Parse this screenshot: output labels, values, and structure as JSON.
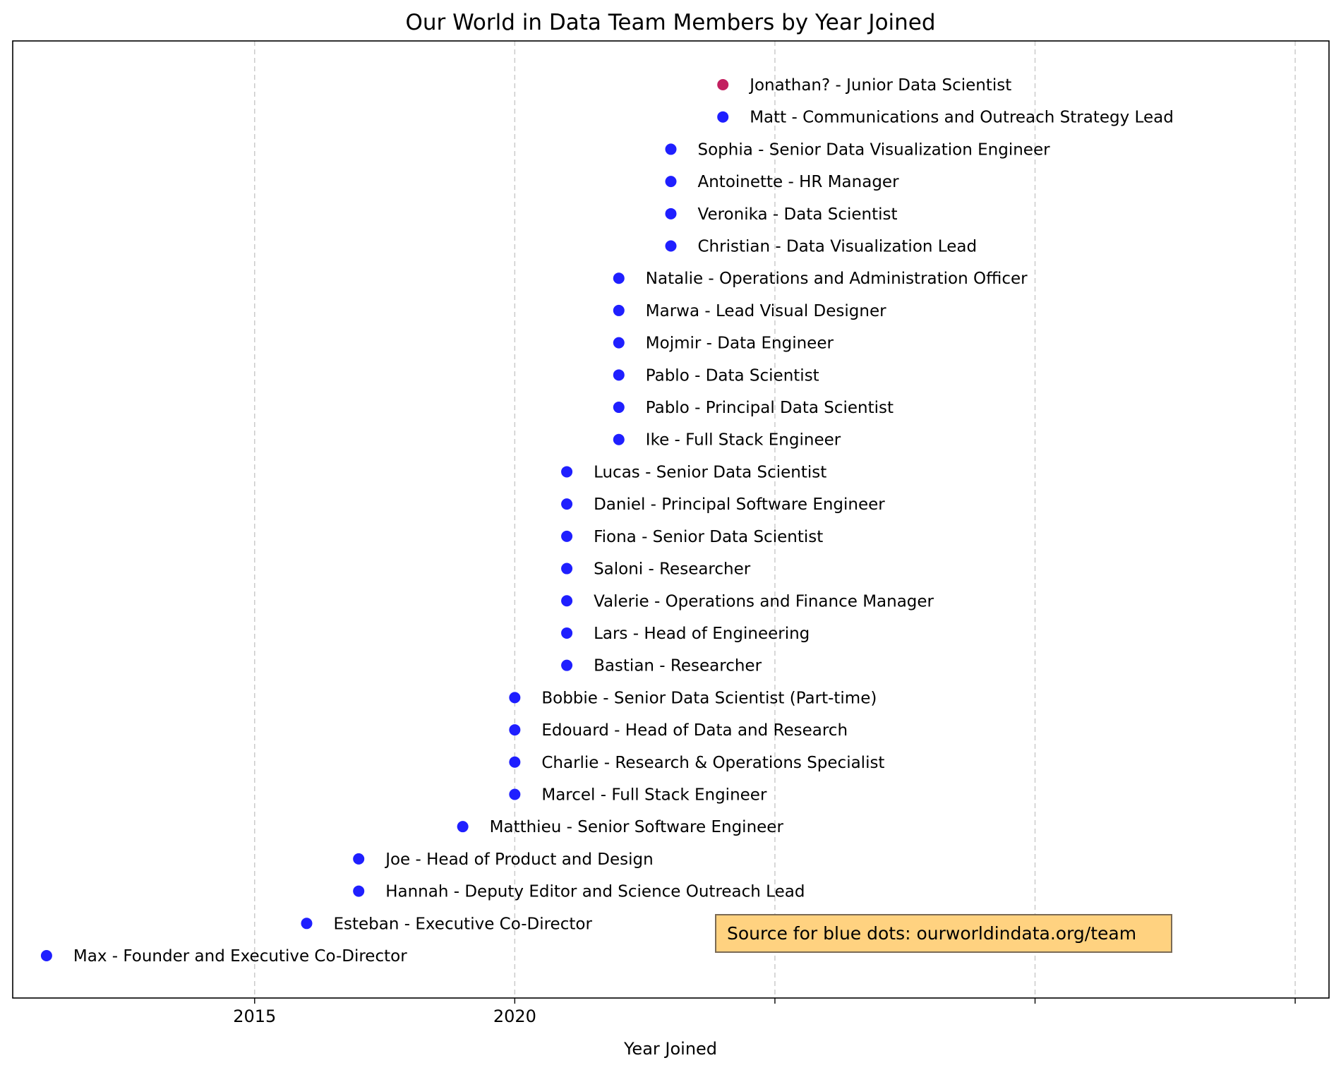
{
  "chart_data": {
    "type": "scatter",
    "title": "Our World in Data Team Members by Year Joined",
    "xlabel": "Year Joined",
    "ylabel": "",
    "xlim": [
      2010.35,
      2035.65
    ],
    "x_ticks": [
      2015,
      2020,
      2025,
      2030,
      2035
    ],
    "x_tick_labels": [
      "2015",
      "2020",
      "",
      "",
      ""
    ],
    "grid": "vertical dashed",
    "colors": {
      "blue": "#1f1fff",
      "highlight": "#c21f5f"
    },
    "points": [
      {
        "x": 2011,
        "label": "Max - Founder and Executive Co-Director",
        "color": "blue"
      },
      {
        "x": 2016,
        "label": "Esteban - Executive Co-Director",
        "color": "blue"
      },
      {
        "x": 2017,
        "label": "Hannah - Deputy Editor and Science Outreach Lead",
        "color": "blue"
      },
      {
        "x": 2017,
        "label": "Joe - Head of Product and Design",
        "color": "blue"
      },
      {
        "x": 2019,
        "label": "Matthieu - Senior Software Engineer",
        "color": "blue"
      },
      {
        "x": 2020,
        "label": "Marcel - Full Stack Engineer",
        "color": "blue"
      },
      {
        "x": 2020,
        "label": "Charlie - Research & Operations Specialist",
        "color": "blue"
      },
      {
        "x": 2020,
        "label": "Edouard - Head of Data and Research",
        "color": "blue"
      },
      {
        "x": 2020,
        "label": "Bobbie - Senior Data Scientist (Part-time)",
        "color": "blue"
      },
      {
        "x": 2021,
        "label": "Bastian - Researcher",
        "color": "blue"
      },
      {
        "x": 2021,
        "label": "Lars - Head of Engineering",
        "color": "blue"
      },
      {
        "x": 2021,
        "label": "Valerie - Operations and Finance Manager",
        "color": "blue"
      },
      {
        "x": 2021,
        "label": "Saloni - Researcher",
        "color": "blue"
      },
      {
        "x": 2021,
        "label": "Fiona - Senior Data Scientist",
        "color": "blue"
      },
      {
        "x": 2021,
        "label": "Daniel - Principal Software Engineer",
        "color": "blue"
      },
      {
        "x": 2021,
        "label": "Lucas - Senior Data Scientist",
        "color": "blue"
      },
      {
        "x": 2022,
        "label": "Ike - Full Stack Engineer",
        "color": "blue"
      },
      {
        "x": 2022,
        "label": "Pablo - Principal Data Scientist",
        "color": "blue"
      },
      {
        "x": 2022,
        "label": "Pablo - Data Scientist",
        "color": "blue"
      },
      {
        "x": 2022,
        "label": "Mojmir - Data Engineer",
        "color": "blue"
      },
      {
        "x": 2022,
        "label": "Marwa - Lead Visual Designer",
        "color": "blue"
      },
      {
        "x": 2022,
        "label": "Natalie - Operations and Administration Officer",
        "color": "blue"
      },
      {
        "x": 2023,
        "label": "Christian - Data Visualization Lead",
        "color": "blue"
      },
      {
        "x": 2023,
        "label": "Veronika - Data Scientist",
        "color": "blue"
      },
      {
        "x": 2023,
        "label": "Antoinette - HR Manager",
        "color": "blue"
      },
      {
        "x": 2023,
        "label": "Sophia - Senior Data Visualization Engineer",
        "color": "blue"
      },
      {
        "x": 2024,
        "label": "Matt - Communications and Outreach Strategy Lead",
        "color": "blue"
      },
      {
        "x": 2024,
        "label": "Jonathan? - Junior Data Scientist",
        "color": "highlight"
      }
    ],
    "annotation": {
      "text": "Source for blue dots: ourworldindata.org/team",
      "background": "#ffd280",
      "border": "#7a6a55",
      "placement": "lower-right"
    }
  }
}
